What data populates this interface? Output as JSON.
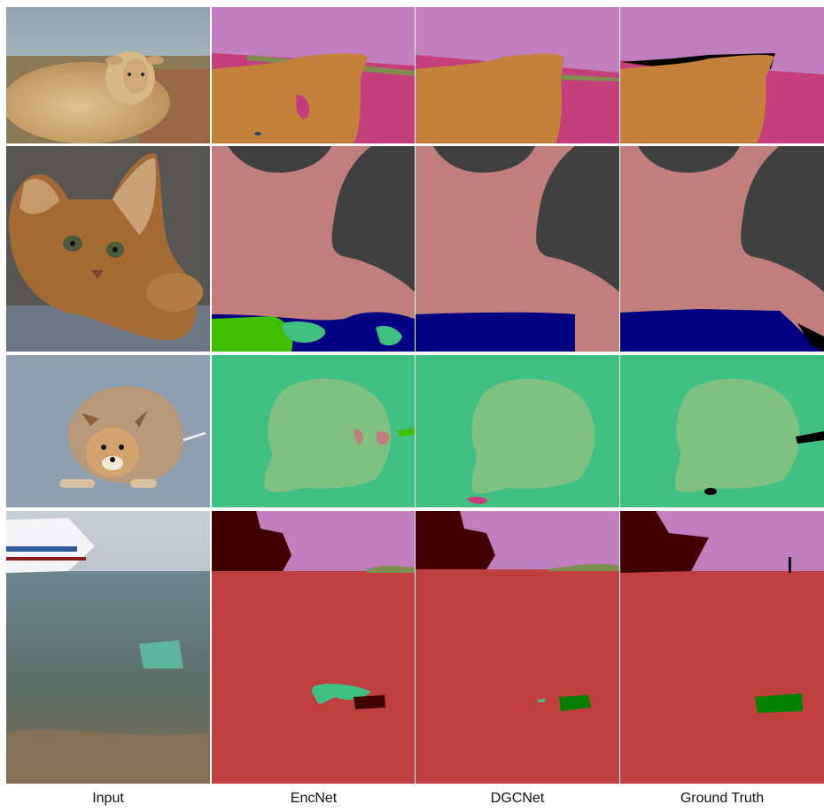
{
  "columns": {
    "input": "Input",
    "encnet": "EncNet",
    "dgcnet": "DGCNet",
    "ground_truth": "Ground Truth"
  },
  "colors": {
    "sky": "#c17fbf",
    "sheep": "#c4813c",
    "ground_pink": "#c5407a",
    "grass_olive": "#7f8e4e",
    "cat": "#c07f7c",
    "wall_dark": "#404040",
    "blanket_navy": "#000080",
    "green_bright": "#3fbf00",
    "teal": "#40c080",
    "dog": "#80c080",
    "road_green": "#40c082",
    "sea_red": "#c04040",
    "ship_maroon": "#400000",
    "object_green": "#008000",
    "void": "#000000"
  },
  "rows": [
    "sheep",
    "kitten",
    "dog",
    "harbor"
  ]
}
